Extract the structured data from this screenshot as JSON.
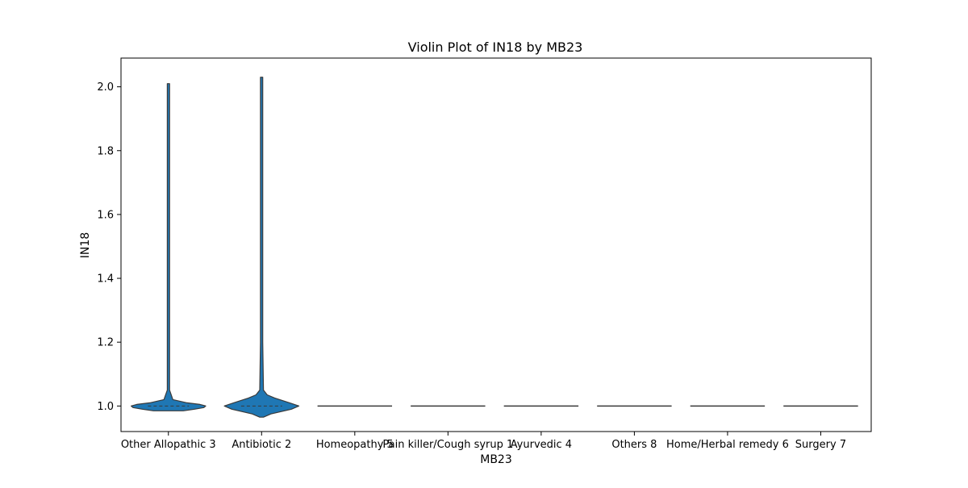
{
  "chart_data": {
    "type": "violin",
    "title": "Violin Plot of IN18 by MB23",
    "xlabel": "MB23",
    "ylabel": "IN18",
    "ylim": [
      0.92,
      2.09
    ],
    "yticks": [
      "1.0",
      "1.2",
      "1.4",
      "1.6",
      "1.8",
      "2.0"
    ],
    "grid": false,
    "categories": [
      "Other Allopathic 3",
      "Antibiotic 2",
      "Homeopathy 5",
      "Pain killer/Cough syrup 1",
      "Ayurvedic 4",
      "Others 8",
      "Home/Herbal remedy 6",
      "Surgery 7"
    ],
    "violins": [
      {
        "category": "Other Allopathic 3",
        "min": 1.0,
        "max": 2.01,
        "center": 1.0,
        "q1": 1.0,
        "q3": 1.0,
        "density_y": [
          0.985,
          0.99,
          0.995,
          1.0,
          1.005,
          1.01,
          1.02,
          1.05,
          1.2,
          2.01
        ],
        "density_w": [
          0.4,
          0.7,
          0.95,
          1.0,
          0.85,
          0.5,
          0.12,
          0.03,
          0.03,
          0.03
        ]
      },
      {
        "category": "Antibiotic 2",
        "min": 0.97,
        "max": 2.03,
        "center": 1.0,
        "q1": 1.0,
        "q3": 1.0,
        "density_y": [
          0.965,
          0.975,
          0.99,
          1.0,
          1.01,
          1.025,
          1.035,
          1.05,
          1.2,
          2.03
        ],
        "density_w": [
          0.05,
          0.25,
          0.8,
          1.0,
          0.75,
          0.35,
          0.15,
          0.05,
          0.03,
          0.03
        ]
      },
      {
        "category": "Homeopathy 5",
        "min": 1.0,
        "max": 1.0,
        "center": 1.0
      },
      {
        "category": "Pain killer/Cough syrup 1",
        "min": 1.0,
        "max": 1.0,
        "center": 1.0
      },
      {
        "category": "Ayurvedic 4",
        "min": 1.0,
        "max": 1.0,
        "center": 1.0
      },
      {
        "category": "Others 8",
        "min": 1.0,
        "max": 1.0,
        "center": 1.0
      },
      {
        "category": "Home/Herbal remedy 6",
        "min": 1.0,
        "max": 1.0,
        "center": 1.0
      },
      {
        "category": "Surgery 7",
        "min": 1.0,
        "max": 1.0,
        "center": 1.0
      }
    ],
    "color": "#1f77b4",
    "line_color": "#3a3a3a"
  }
}
